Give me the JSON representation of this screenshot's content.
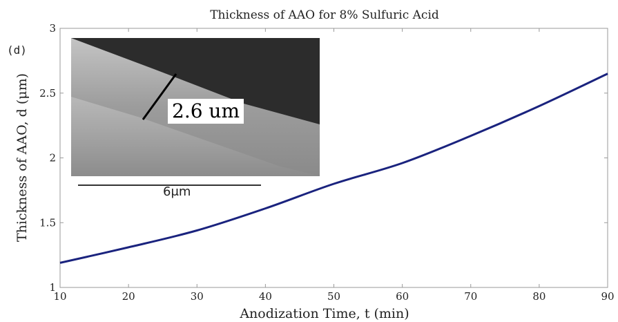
{
  "chart_data": {
    "type": "line",
    "title": "Thickness of AAO for 8% Sulfuric Acid",
    "xlabel": "Anodization Time, t (min)",
    "ylabel": "Thickness of AAO, d (μm)",
    "xlim": [
      10,
      90
    ],
    "ylim": [
      1,
      3
    ],
    "xticks": [
      "10",
      "20",
      "30",
      "40",
      "50",
      "60",
      "70",
      "80",
      "90"
    ],
    "yticks": [
      "1",
      "1.5",
      "2",
      "2.5",
      "3"
    ],
    "grid": false,
    "series": [
      {
        "name": "thickness",
        "color": "#1a237e",
        "x": [
          10,
          20,
          30,
          40,
          50,
          60,
          70,
          80,
          90
        ],
        "y": [
          1.19,
          1.31,
          1.44,
          1.61,
          1.8,
          1.96,
          2.17,
          2.4,
          2.65
        ]
      }
    ],
    "annotations": {
      "panel_label": "(d)",
      "inset_measurement": "2.6 um",
      "inset_scale_bar": "6μm"
    }
  }
}
